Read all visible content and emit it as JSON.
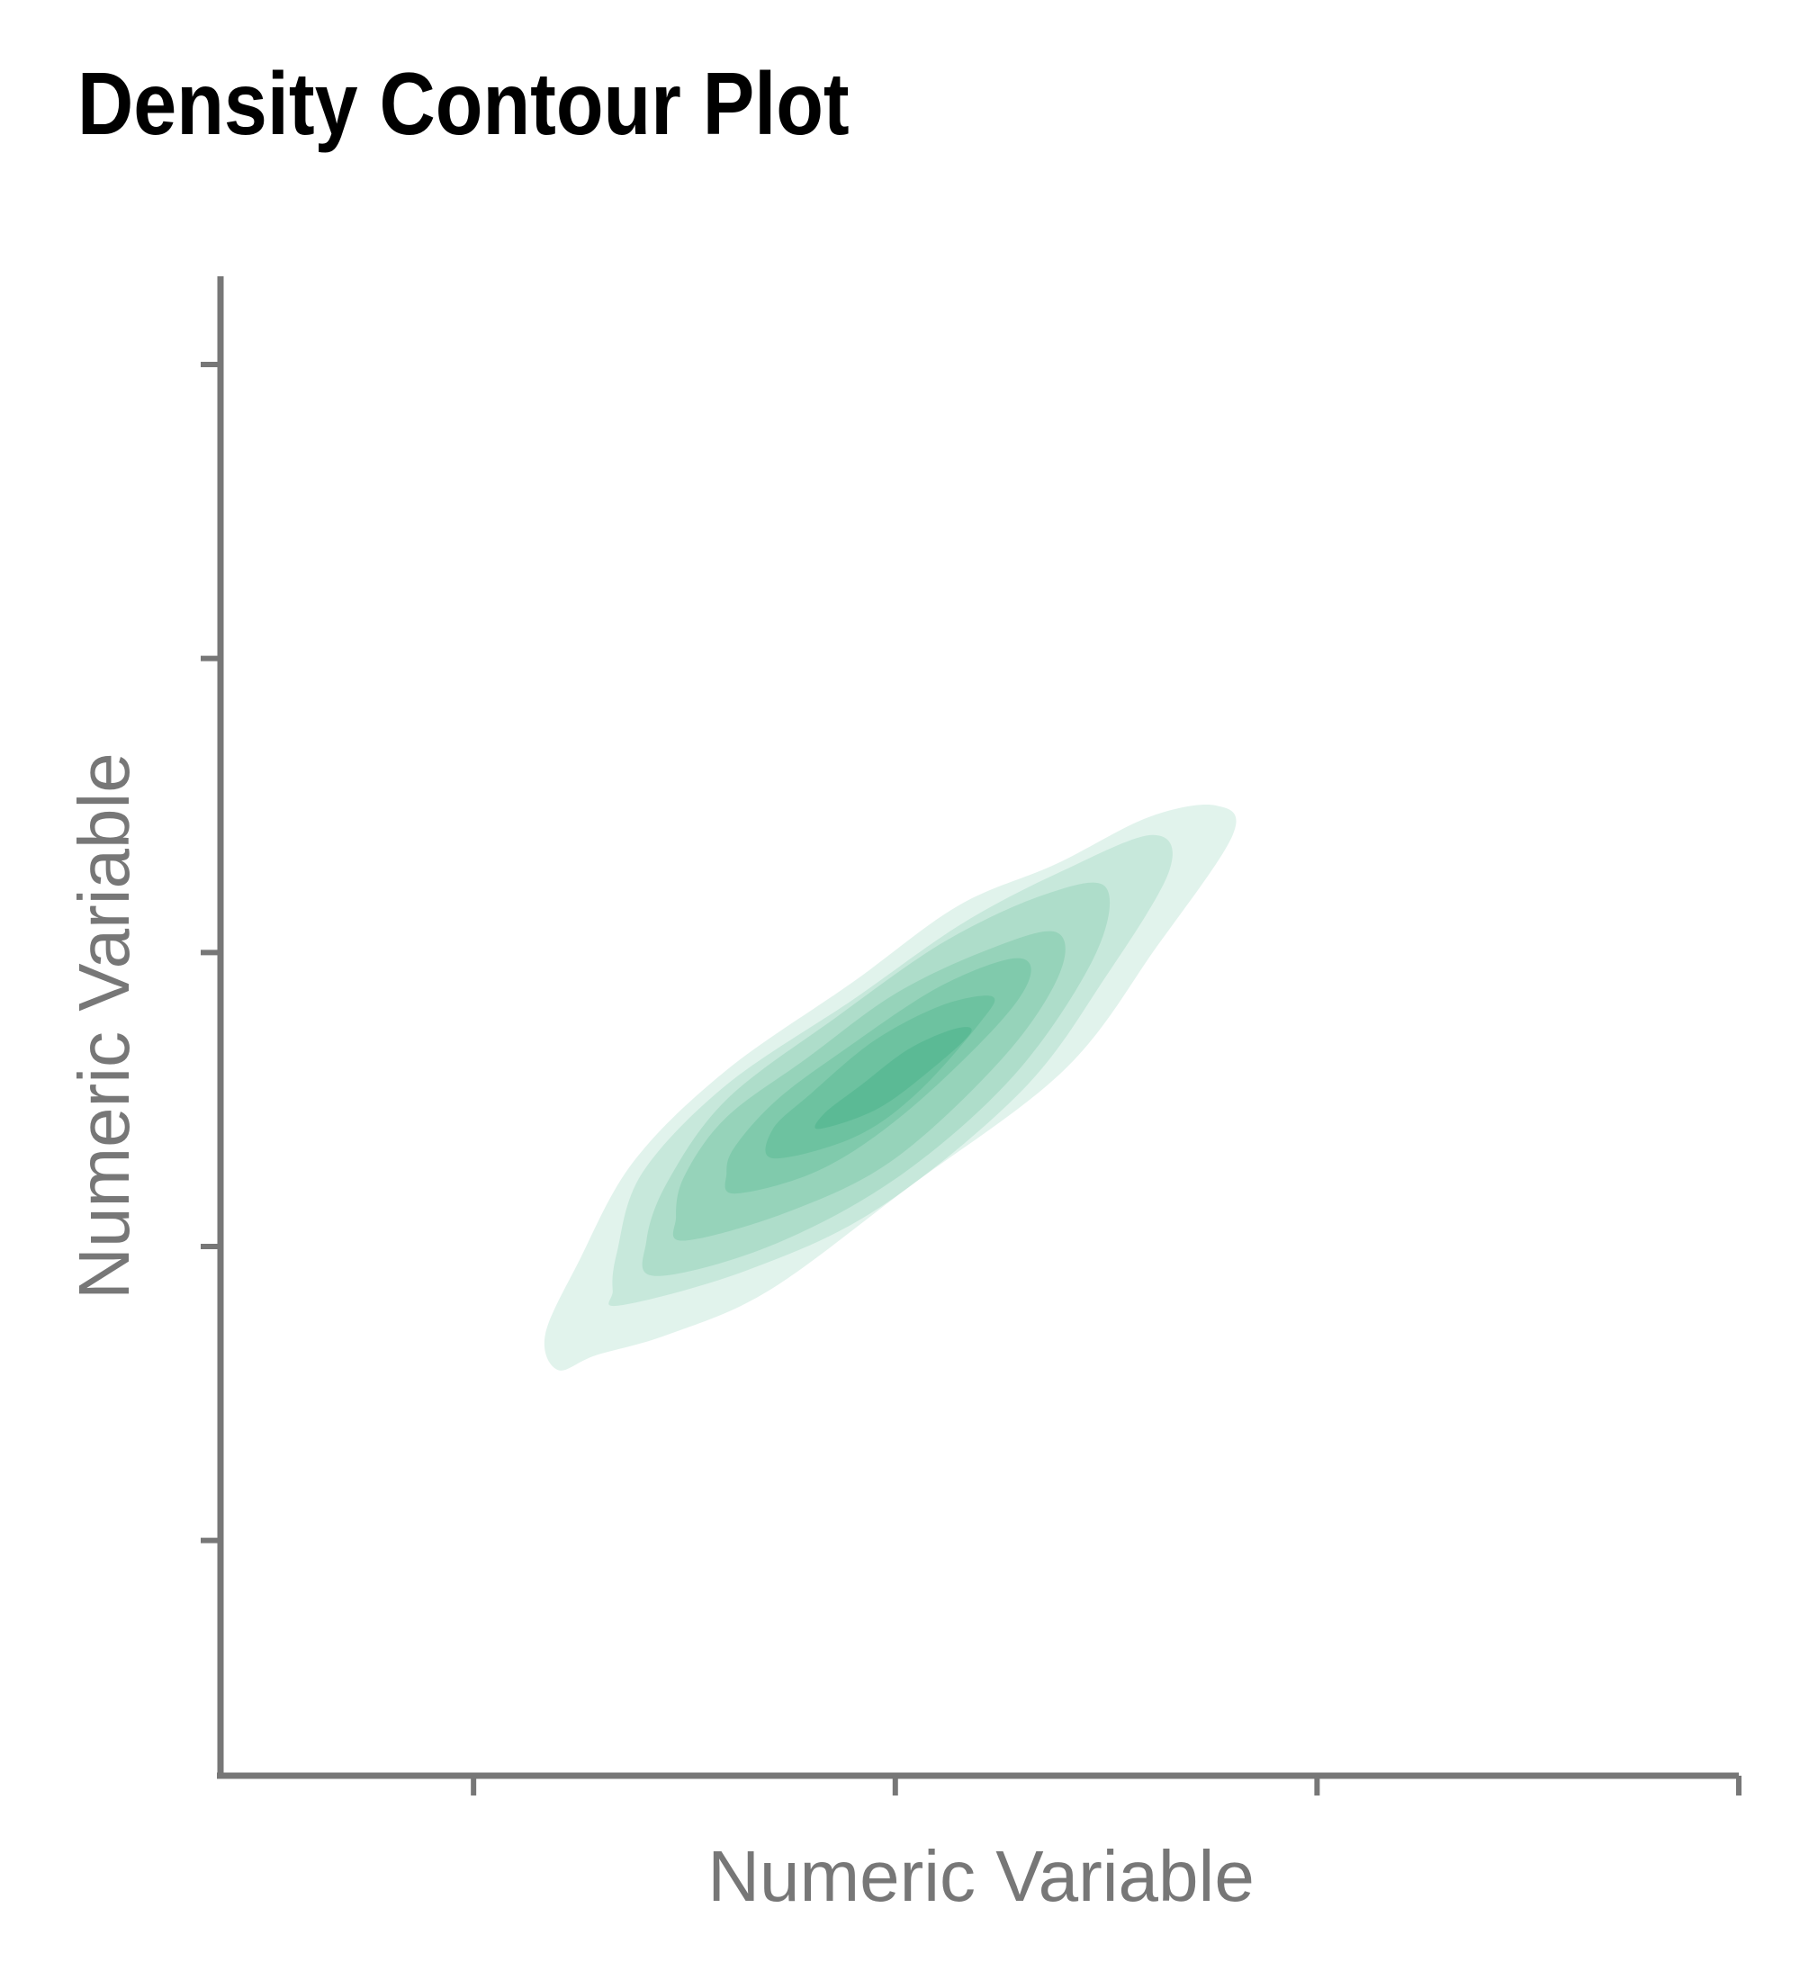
{
  "chart_data": {
    "type": "density_contour",
    "title": "Density Contour Plot",
    "xlabel": "Numeric Variable",
    "ylabel": "Numeric Variable",
    "xlim": [
      0,
      3.6
    ],
    "ylim": [
      0,
      5.1
    ],
    "x_ticks": [
      0.6,
      1.6,
      2.6,
      3.6
    ],
    "y_ticks": [
      0.8,
      1.8,
      2.8,
      3.8,
      4.8
    ],
    "tick_labels_visible": false,
    "grid": false,
    "legend": "none",
    "fill_color": "#2aa877",
    "axis_color": "#777777",
    "levels": [
      {
        "level": 1,
        "opacity": 0.14,
        "points": [
          [
            0.8,
            1.38
          ],
          [
            0.89,
            1.43
          ],
          [
            1.06,
            1.5
          ],
          [
            1.3,
            1.65
          ],
          [
            1.63,
            2.0
          ],
          [
            2.0,
            2.4
          ],
          [
            2.22,
            2.82
          ],
          [
            2.4,
            3.2
          ],
          [
            2.36,
            3.3
          ],
          [
            2.2,
            3.26
          ],
          [
            1.98,
            3.1
          ],
          [
            1.75,
            2.96
          ],
          [
            1.5,
            2.7
          ],
          [
            1.2,
            2.4
          ],
          [
            0.98,
            2.09
          ],
          [
            0.85,
            1.75
          ],
          [
            0.77,
            1.5
          ]
        ]
      },
      {
        "level": 2,
        "opacity": 0.14,
        "points": [
          [
            0.95,
            1.6
          ],
          [
            1.25,
            1.72
          ],
          [
            1.56,
            1.93
          ],
          [
            1.9,
            2.33
          ],
          [
            2.1,
            2.72
          ],
          [
            2.25,
            3.08
          ],
          [
            2.21,
            3.2
          ],
          [
            2.0,
            3.08
          ],
          [
            1.76,
            2.9
          ],
          [
            1.5,
            2.64
          ],
          [
            1.2,
            2.35
          ],
          [
            1.0,
            2.05
          ],
          [
            0.94,
            1.78
          ],
          [
            0.93,
            1.65
          ]
        ]
      },
      {
        "level": 3,
        "opacity": 0.16,
        "points": [
          [
            1.03,
            1.7
          ],
          [
            1.3,
            1.8
          ],
          [
            1.6,
            2.03
          ],
          [
            1.88,
            2.38
          ],
          [
            2.07,
            2.78
          ],
          [
            2.1,
            3.02
          ],
          [
            1.96,
            3.0
          ],
          [
            1.72,
            2.84
          ],
          [
            1.46,
            2.58
          ],
          [
            1.2,
            2.3
          ],
          [
            1.06,
            2.02
          ],
          [
            1.01,
            1.82
          ]
        ]
      },
      {
        "level": 4,
        "opacity": 0.18,
        "points": [
          [
            1.1,
            1.82
          ],
          [
            1.35,
            1.92
          ],
          [
            1.6,
            2.1
          ],
          [
            1.86,
            2.45
          ],
          [
            1.99,
            2.73
          ],
          [
            1.98,
            2.87
          ],
          [
            1.82,
            2.81
          ],
          [
            1.6,
            2.66
          ],
          [
            1.39,
            2.44
          ],
          [
            1.2,
            2.24
          ],
          [
            1.1,
            2.04
          ],
          [
            1.08,
            1.9
          ]
        ]
      },
      {
        "level": 5,
        "opacity": 0.2,
        "points": [
          [
            1.22,
            1.98
          ],
          [
            1.42,
            2.06
          ],
          [
            1.62,
            2.25
          ],
          [
            1.84,
            2.55
          ],
          [
            1.92,
            2.72
          ],
          [
            1.88,
            2.78
          ],
          [
            1.7,
            2.68
          ],
          [
            1.48,
            2.47
          ],
          [
            1.32,
            2.3
          ],
          [
            1.22,
            2.14
          ],
          [
            1.2,
            2.05
          ]
        ]
      },
      {
        "level": 6,
        "opacity": 0.22,
        "points": [
          [
            1.31,
            2.1
          ],
          [
            1.5,
            2.17
          ],
          [
            1.65,
            2.32
          ],
          [
            1.8,
            2.56
          ],
          [
            1.83,
            2.65
          ],
          [
            1.71,
            2.62
          ],
          [
            1.55,
            2.5
          ],
          [
            1.4,
            2.32
          ],
          [
            1.31,
            2.2
          ]
        ]
      },
      {
        "level": 7,
        "opacity": 0.26,
        "points": [
          [
            1.42,
            2.2
          ],
          [
            1.56,
            2.27
          ],
          [
            1.7,
            2.42
          ],
          [
            1.78,
            2.53
          ],
          [
            1.74,
            2.54
          ],
          [
            1.63,
            2.47
          ],
          [
            1.52,
            2.35
          ],
          [
            1.43,
            2.25
          ]
        ]
      }
    ]
  }
}
